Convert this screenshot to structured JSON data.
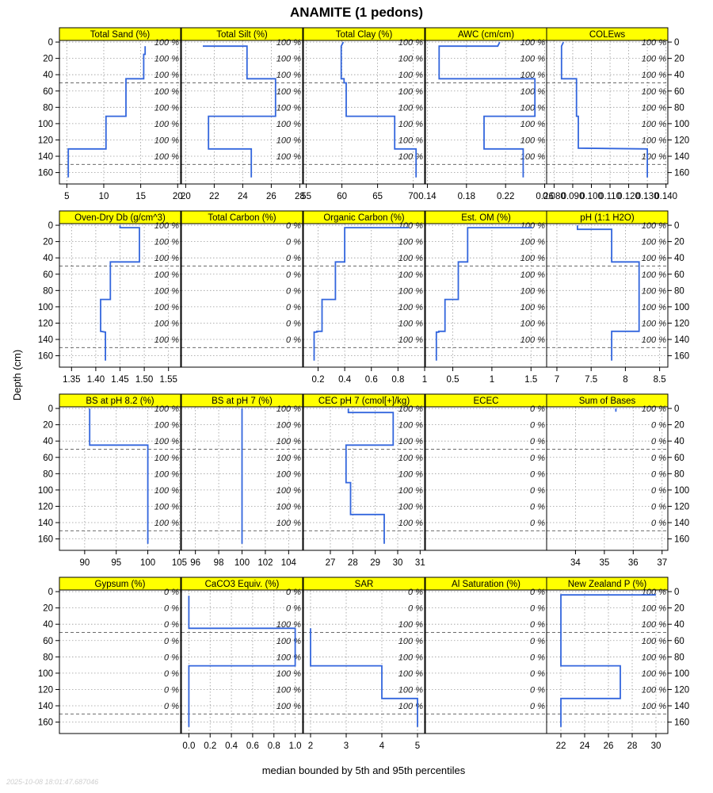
{
  "chart_data": {
    "type": "line",
    "title": "ANAMITE (1 pedons)",
    "ylabel": "Depth (cm)",
    "xlabel": "median bounded by 5th and 95th percentiles",
    "timestamp": "2025-10-08 18:01:47.687046",
    "ylim": [
      -2,
      174
    ],
    "y_ticks": [
      0,
      20,
      40,
      60,
      80,
      100,
      120,
      140,
      160
    ],
    "pct_depths": [
      0,
      20,
      40,
      60,
      80,
      100,
      120,
      140
    ],
    "line_color": "#3366dd",
    "strip_color": "#ffff00",
    "grid": true,
    "panels": [
      {
        "name": "Total Sand (%)",
        "xlim": [
          4.0,
          20.4
        ],
        "x_ticks": [
          5,
          10,
          15,
          20
        ],
        "pct": [
          "100 %",
          "100 %",
          "100 %",
          "100 %",
          "100 %",
          "100 %",
          "100 %",
          "100 %"
        ],
        "x": [
          15.6,
          15.6,
          15.4,
          15.4,
          13.0,
          13.0,
          10.3,
          10.3,
          10.3,
          10.3,
          5.2,
          5.2
        ],
        "y": [
          5,
          15,
          15,
          45,
          45,
          91,
          91,
          130,
          130,
          131,
          131,
          166
        ]
      },
      {
        "name": "Total Silt (%)",
        "xlim": [
          19.7,
          28.2
        ],
        "x_ticks": [
          20,
          22,
          24,
          26,
          28
        ],
        "pct": [
          "100 %",
          "100 %",
          "100 %",
          "100 %",
          "100 %",
          "100 %",
          "100 %",
          "100 %"
        ],
        "x": [
          21.2,
          21.2,
          24.3,
          24.3,
          26.3,
          26.3,
          21.6,
          21.6,
          21.6,
          21.6,
          24.6,
          24.6
        ],
        "y": [
          5,
          5,
          5,
          45,
          45,
          91,
          91,
          130,
          130,
          131,
          131,
          166
        ]
      },
      {
        "name": "Total Clay (%)",
        "xlim": [
          54.6,
          71.6
        ],
        "x_ticks": [
          55,
          60,
          65,
          70
        ],
        "pct": [
          "100 %",
          "100 %",
          "100 %",
          "100 %",
          "100 %",
          "100 %",
          "100 %",
          "100 %"
        ],
        "x": [
          60.2,
          59.9,
          59.9,
          60.3,
          60.3,
          60.6,
          60.6,
          67.4,
          67.4,
          70.4,
          70.4
        ],
        "y": [
          0,
          5,
          45,
          45,
          50,
          50,
          91,
          91,
          131,
          131,
          166
        ]
      },
      {
        "name": "AWC (cm/cm)",
        "xlim": [
          0.138,
          0.262
        ],
        "x_ticks": [
          0.14,
          0.18,
          0.22,
          0.26
        ],
        "pct": [
          "100 %",
          "100 %",
          "100 %",
          "100 %",
          "100 %",
          "100 %",
          "100 %",
          "100 %"
        ],
        "x": [
          0.214,
          0.212,
          0.152,
          0.152,
          0.25,
          0.25,
          0.198,
          0.198,
          0.198,
          0.238,
          0.238
        ],
        "y": [
          0,
          5,
          5,
          45,
          45,
          91,
          91,
          130,
          131,
          131,
          166
        ]
      },
      {
        "name": "COLEws",
        "xlim": [
          0.076,
          0.141
        ],
        "x_ticks": [
          0.08,
          0.09,
          0.1,
          0.11,
          0.12,
          0.13,
          0.14
        ],
        "x_tick_labels": [
          "0.080",
          "0.090",
          "0.100",
          "0.110",
          "0.120",
          "0.130",
          "0.140"
        ],
        "pct": [
          "100 %",
          "100 %",
          "100 %",
          "100 %",
          "100 %",
          "100 %",
          "100 %",
          "100 %"
        ],
        "x": [
          0.085,
          0.084,
          0.084,
          0.084,
          0.092,
          0.092,
          0.093,
          0.093,
          0.13,
          0.13
        ],
        "y": [
          0,
          5,
          5,
          45,
          45,
          91,
          91,
          130,
          131,
          166
        ]
      },
      {
        "name": "Oven-Dry Db (g/cm^3)",
        "xlim": [
          1.325,
          1.575
        ],
        "x_ticks": [
          1.35,
          1.4,
          1.45,
          1.5,
          1.55
        ],
        "x_tick_labels": [
          "1.35",
          "1.40",
          "1.45",
          "1.50",
          "1.55"
        ],
        "pct": [
          "100 %",
          "100 %",
          "100 %",
          "100 %",
          "100 %",
          "100 %",
          "100 %",
          "100 %"
        ],
        "x": [
          1.45,
          1.45,
          1.49,
          1.49,
          1.43,
          1.43,
          1.41,
          1.41,
          1.41,
          1.42,
          1.42
        ],
        "y": [
          0,
          3,
          3,
          45,
          45,
          91,
          91,
          130,
          130,
          131,
          166
        ]
      },
      {
        "name": "Total Carbon (%)",
        "xlim": [
          0,
          1
        ],
        "x_ticks": [],
        "pct": [
          "0 %",
          "0 %",
          "0 %",
          "0 %",
          "0 %",
          "0 %",
          "0 %",
          "0 %"
        ],
        "x": [],
        "y": []
      },
      {
        "name": "Organic Carbon (%)",
        "xlim": [
          0.09,
          1.0
        ],
        "x_ticks": [
          0.2,
          0.4,
          0.6,
          0.8,
          1.0
        ],
        "pct": [
          "100 %",
          "100 %",
          "100 %",
          "100 %",
          "100 %",
          "100 %",
          "100 %",
          "100 %"
        ],
        "x": [
          0.88,
          0.4,
          0.4,
          0.33,
          0.33,
          0.23,
          0.23,
          0.19,
          0.19,
          0.17,
          0.17
        ],
        "y": [
          3,
          3,
          45,
          45,
          91,
          91,
          130,
          130,
          131,
          131,
          166
        ]
      },
      {
        "name": "Est. OM (%)",
        "xlim": [
          0.15,
          1.7
        ],
        "x_ticks": [
          0.5,
          1.0,
          1.5
        ],
        "pct": [
          "100 %",
          "100 %",
          "100 %",
          "100 %",
          "100 %",
          "100 %",
          "100 %",
          "100 %"
        ],
        "x": [
          1.52,
          0.69,
          0.69,
          0.57,
          0.57,
          0.4,
          0.4,
          0.32,
          0.32,
          0.29,
          0.29
        ],
        "y": [
          3,
          3,
          45,
          45,
          91,
          91,
          130,
          130,
          131,
          131,
          166
        ]
      },
      {
        "name": "pH (1:1 H2O)",
        "xlim": [
          6.85,
          8.62
        ],
        "x_ticks": [
          7.0,
          7.5,
          8.0,
          8.5
        ],
        "pct": [
          "100 %",
          "100 %",
          "100 %",
          "100 %",
          "100 %",
          "100 %",
          "100 %",
          "100 %"
        ],
        "x": [
          7.3,
          7.3,
          7.8,
          7.8,
          8.2,
          8.2,
          8.2,
          7.8,
          7.8
        ],
        "y": [
          0,
          5,
          5,
          45,
          45,
          91,
          130,
          130,
          166
        ]
      },
      {
        "name": "BS at pH 8.2 (%)",
        "xlim": [
          86.0,
          105.2
        ],
        "x_ticks": [
          90,
          95,
          100,
          105
        ],
        "pct": [
          "100 %",
          "100 %",
          "100 %",
          "100 %",
          "100 %",
          "100 %",
          "100 %",
          "100 %"
        ],
        "x": [
          90.8,
          90.8,
          100,
          100,
          100
        ],
        "y": [
          0,
          45,
          45,
          91,
          166
        ]
      },
      {
        "name": "BS at pH 7 (%)",
        "xlim": [
          94.8,
          105.2
        ],
        "x_ticks": [
          96,
          98,
          100,
          102,
          104
        ],
        "pct": [
          "100 %",
          "100 %",
          "100 %",
          "100 %",
          "100 %",
          "100 %",
          "100 %",
          "100 %"
        ],
        "x": [
          100,
          100
        ],
        "y": [
          0,
          166
        ]
      },
      {
        "name": "CEC pH 7 (cmol[+]/kg)",
        "xlim": [
          25.8,
          31.2
        ],
        "x_ticks": [
          27,
          28,
          29,
          30,
          31
        ],
        "pct": [
          "100 %",
          "100 %",
          "100 %",
          "100 %",
          "100 %",
          "100 %",
          "100 %",
          "100 %"
        ],
        "x": [
          27.8,
          27.8,
          29.8,
          29.8,
          27.7,
          27.7,
          27.9,
          27.9,
          29.4,
          29.4
        ],
        "y": [
          0,
          5,
          5,
          45,
          45,
          91,
          91,
          130,
          130,
          166
        ]
      },
      {
        "name": "ECEC",
        "xlim": [
          0,
          1
        ],
        "x_ticks": [],
        "pct": [
          "0 %",
          "0 %",
          "0 %",
          "0 %",
          "0 %",
          "0 %",
          "0 %",
          "0 %"
        ],
        "x": [],
        "y": []
      },
      {
        "name": "Sum of Bases",
        "xlim": [
          33.0,
          37.2
        ],
        "x_ticks": [
          34,
          35,
          36,
          37
        ],
        "pct": [
          "100 %",
          "0 %",
          "0 %",
          "0 %",
          "0 %",
          "0 %",
          "0 %",
          "0 %"
        ],
        "x": [
          35.4,
          35.4
        ],
        "y": [
          0,
          4
        ]
      },
      {
        "name": "Gypsum (%)",
        "xlim": [
          0,
          1
        ],
        "x_ticks": [],
        "pct": [
          "0 %",
          "0 %",
          "0 %",
          "0 %",
          "0 %",
          "0 %",
          "0 %",
          "0 %"
        ],
        "x": [],
        "y": []
      },
      {
        "name": "CaCO3 Equiv. (%)",
        "xlim": [
          -0.07,
          1.07
        ],
        "x_ticks": [
          0.0,
          0.2,
          0.4,
          0.6,
          0.8,
          1.0
        ],
        "x_tick_labels": [
          "0.0",
          "0.2",
          "0.4",
          "0.6",
          "0.8",
          "1.0"
        ],
        "pct": [
          "0 %",
          "0 %",
          "100 %",
          "100 %",
          "100 %",
          "100 %",
          "100 %",
          "100 %"
        ],
        "x": [
          0,
          0,
          1,
          1,
          0,
          0
        ],
        "y": [
          5,
          45,
          45,
          91,
          91,
          166
        ]
      },
      {
        "name": "SAR",
        "xlim": [
          1.8,
          5.2
        ],
        "x_ticks": [
          2,
          3,
          4,
          5
        ],
        "pct": [
          "0 %",
          "0 %",
          "100 %",
          "100 %",
          "100 %",
          "100 %",
          "100 %",
          "100 %"
        ],
        "x": [
          2,
          2,
          4,
          4,
          5,
          5
        ],
        "y": [
          45,
          91,
          91,
          131,
          131,
          166
        ]
      },
      {
        "name": "Al Saturation (%)",
        "xlim": [
          0,
          1
        ],
        "x_ticks": [],
        "pct": [
          "0 %",
          "0 %",
          "0 %",
          "0 %",
          "0 %",
          "0 %",
          "0 %",
          "0 %"
        ],
        "x": [],
        "y": []
      },
      {
        "name": "New Zealand P (%)",
        "xlim": [
          20.8,
          31.0
        ],
        "x_ticks": [
          22,
          24,
          26,
          28,
          30
        ],
        "pct": [
          "100 %",
          "100 %",
          "100 %",
          "100 %",
          "100 %",
          "100 %",
          "100 %",
          "100 %"
        ],
        "x": [
          30,
          22,
          22,
          27,
          27,
          22,
          22
        ],
        "y": [
          4,
          4,
          91,
          91,
          131,
          131,
          166
        ]
      }
    ]
  }
}
